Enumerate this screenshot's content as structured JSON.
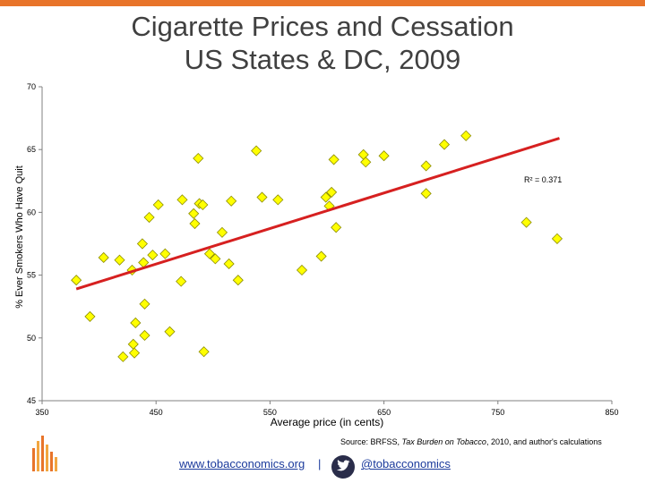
{
  "colors": {
    "accent": "#e8742a",
    "point_fill": "#ffff00",
    "point_stroke": "#8c8c00",
    "trend": "#d62020"
  },
  "chart_data": {
    "type": "scatter",
    "title": "Cigarette Prices and Cessation",
    "subtitle": "US States & DC, 2009",
    "xlabel": "Average price (in cents)",
    "ylabel": "% Ever Smokers Who Have Quit",
    "xlim": [
      350,
      850
    ],
    "ylim": [
      45,
      70
    ],
    "xticks": [
      350,
      450,
      550,
      650,
      750,
      850
    ],
    "yticks": [
      45,
      50,
      55,
      60,
      65,
      70
    ],
    "r2_label": "R² = 0.371",
    "trendline": {
      "x": [
        380,
        804
      ],
      "y": [
        53.9,
        65.9
      ]
    },
    "points": [
      {
        "x": 380,
        "y": 54.6
      },
      {
        "x": 392,
        "y": 51.7
      },
      {
        "x": 404,
        "y": 56.4
      },
      {
        "x": 418,
        "y": 56.2
      },
      {
        "x": 421,
        "y": 48.5
      },
      {
        "x": 429,
        "y": 55.4
      },
      {
        "x": 430,
        "y": 49.5
      },
      {
        "x": 431,
        "y": 48.8
      },
      {
        "x": 432,
        "y": 51.2
      },
      {
        "x": 438,
        "y": 57.5
      },
      {
        "x": 439,
        "y": 56.0
      },
      {
        "x": 440,
        "y": 52.7
      },
      {
        "x": 440,
        "y": 50.2
      },
      {
        "x": 444,
        "y": 59.6
      },
      {
        "x": 447,
        "y": 56.6
      },
      {
        "x": 452,
        "y": 60.6
      },
      {
        "x": 458,
        "y": 56.7
      },
      {
        "x": 462,
        "y": 50.5
      },
      {
        "x": 472,
        "y": 54.5
      },
      {
        "x": 473,
        "y": 61.0
      },
      {
        "x": 483,
        "y": 59.9
      },
      {
        "x": 484,
        "y": 59.1
      },
      {
        "x": 487,
        "y": 64.3
      },
      {
        "x": 488,
        "y": 60.7
      },
      {
        "x": 491,
        "y": 60.6
      },
      {
        "x": 492,
        "y": 48.9
      },
      {
        "x": 497,
        "y": 56.7
      },
      {
        "x": 502,
        "y": 56.3
      },
      {
        "x": 508,
        "y": 58.4
      },
      {
        "x": 514,
        "y": 55.9
      },
      {
        "x": 516,
        "y": 60.9
      },
      {
        "x": 522,
        "y": 54.6
      },
      {
        "x": 538,
        "y": 64.9
      },
      {
        "x": 543,
        "y": 61.2
      },
      {
        "x": 557,
        "y": 61.0
      },
      {
        "x": 578,
        "y": 55.4
      },
      {
        "x": 595,
        "y": 56.5
      },
      {
        "x": 599,
        "y": 61.2
      },
      {
        "x": 602,
        "y": 60.5
      },
      {
        "x": 604,
        "y": 61.6
      },
      {
        "x": 606,
        "y": 64.2
      },
      {
        "x": 608,
        "y": 58.8
      },
      {
        "x": 632,
        "y": 64.6
      },
      {
        "x": 634,
        "y": 64.0
      },
      {
        "x": 650,
        "y": 64.5
      },
      {
        "x": 687,
        "y": 63.7
      },
      {
        "x": 687,
        "y": 61.5
      },
      {
        "x": 703,
        "y": 65.4
      },
      {
        "x": 722,
        "y": 66.1
      },
      {
        "x": 775,
        "y": 59.2
      },
      {
        "x": 802,
        "y": 57.9
      }
    ]
  },
  "source_text_prefix": "Source: BRFSS, ",
  "source_text_italic": "Tax Burden on Tobacco",
  "source_text_suffix": ", 2010, and author's calculations",
  "footer": {
    "website": "www.tobacconomics.org",
    "separator": "|",
    "twitter_handle": "@tobacconomics"
  },
  "icons": {
    "twitter": "twitter-bird-icon",
    "logo": "tobacconomics-logo-icon"
  }
}
